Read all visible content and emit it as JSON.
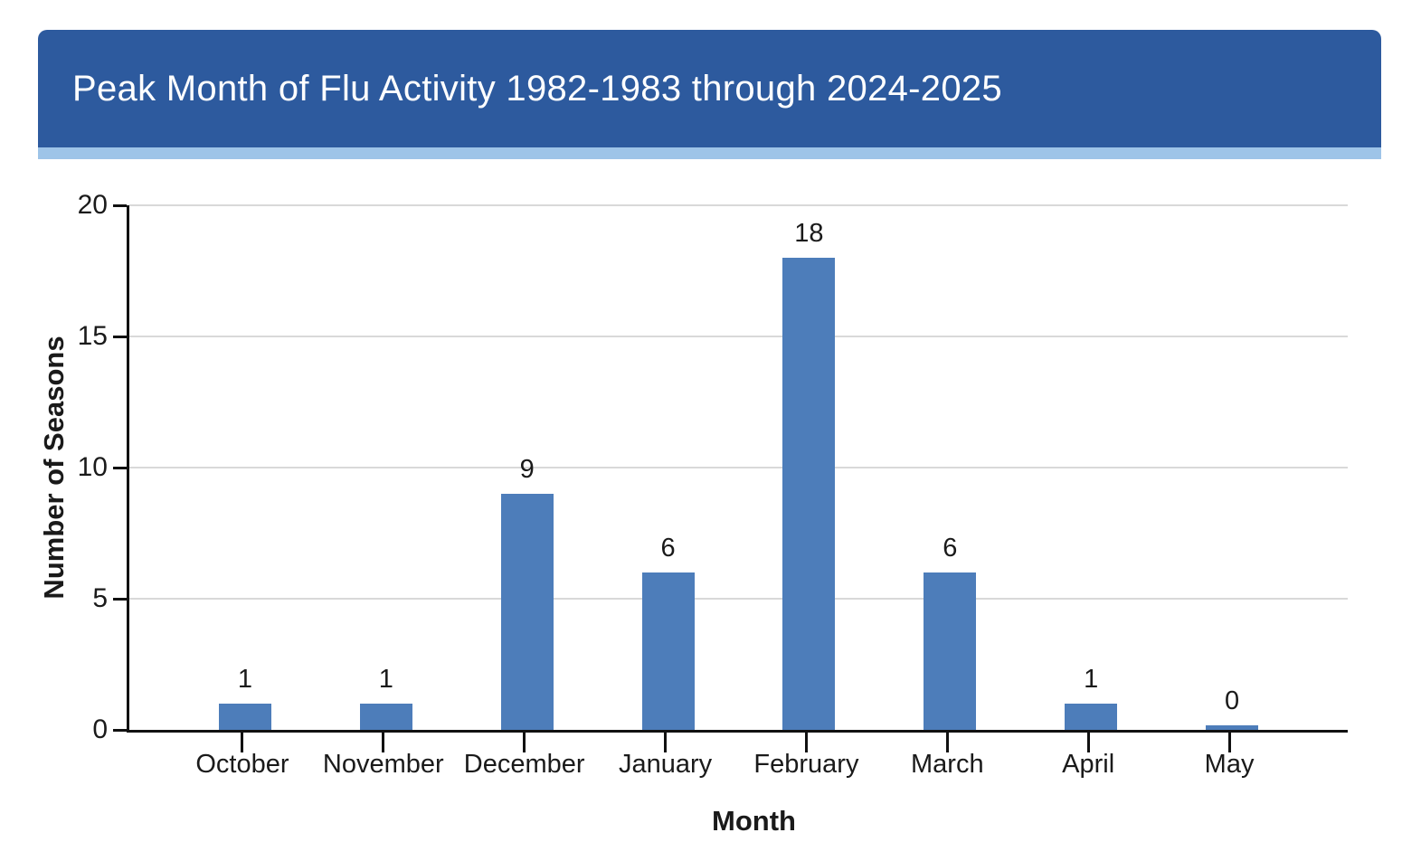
{
  "header": {
    "title": "Peak Month of Flu Activity 1982-1983 through 2024-2025",
    "background_color": "#2d5a9e",
    "accent_strip_color": "#9ec4e8",
    "text_color": "#ffffff"
  },
  "chart_data": {
    "type": "bar",
    "title": "Peak Month of Flu Activity 1982-1983 through 2024-2025",
    "categories": [
      "October",
      "November",
      "December",
      "January",
      "February",
      "March",
      "April",
      "May"
    ],
    "values": [
      1,
      1,
      9,
      6,
      18,
      6,
      1,
      0
    ],
    "value_labels": [
      "1",
      "1",
      "9",
      "6",
      "18",
      "6",
      "1",
      "0"
    ],
    "xlabel": "Month",
    "ylabel": "Number of Seasons",
    "ylim": [
      0,
      20
    ],
    "yticks": [
      0,
      5,
      10,
      15,
      20
    ],
    "grid": true,
    "legend": "none",
    "bar_color": "#4d7dba",
    "gridline_color": "#d9d9d9",
    "axis_color": "#111111"
  }
}
